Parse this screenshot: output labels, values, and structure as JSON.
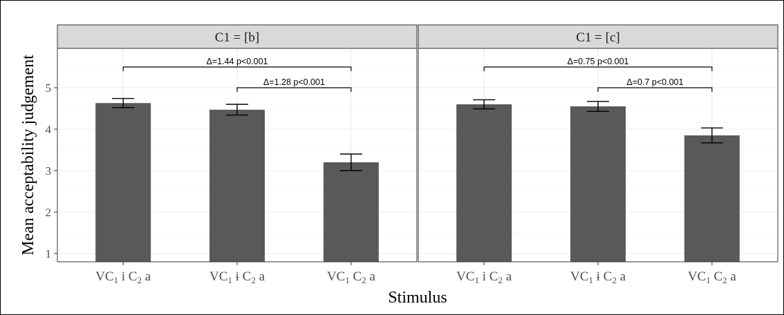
{
  "chart_data": {
    "type": "bar",
    "xlabel": "Stimulus",
    "ylabel": "Mean acceptability judgement",
    "ylim": [
      0.8,
      5.95
    ],
    "yticks": [
      1,
      2,
      3,
      4,
      5
    ],
    "grid": true,
    "bar_color": "#595959",
    "panel_strip_color": "#d9d9d9",
    "categories": [
      {
        "base": "VC",
        "sub1": "1",
        "mid": " i C",
        "sub2": "2",
        "tail": " a"
      },
      {
        "base": "VC",
        "sub1": "1",
        "mid": " ɨ C",
        "sub2": "2",
        "tail": " a"
      },
      {
        "base": "VC",
        "sub1": "1",
        "mid": " C",
        "sub2": "2",
        "tail": " a"
      }
    ],
    "panels": [
      {
        "strip": "C1 = [b]",
        "values": [
          4.63,
          4.47,
          3.2
        ],
        "error_low": [
          4.52,
          4.34,
          3.0
        ],
        "error_high": [
          4.74,
          4.6,
          3.4
        ],
        "comparisons": [
          {
            "from": 0,
            "to": 2,
            "y": 5.5,
            "label": "Δ=1.44 p<0.001"
          },
          {
            "from": 1,
            "to": 2,
            "y": 5.0,
            "label": "Δ=1.28 p<0.001"
          }
        ]
      },
      {
        "strip": "C1 = [c]",
        "values": [
          4.6,
          4.55,
          3.85
        ],
        "error_low": [
          4.49,
          4.43,
          3.67
        ],
        "error_high": [
          4.71,
          4.67,
          4.03
        ],
        "comparisons": [
          {
            "from": 0,
            "to": 2,
            "y": 5.5,
            "label": "Δ=0.75 p<0.001"
          },
          {
            "from": 1,
            "to": 2,
            "y": 5.0,
            "label": "Δ=0.7 p<0.001"
          }
        ]
      }
    ]
  }
}
